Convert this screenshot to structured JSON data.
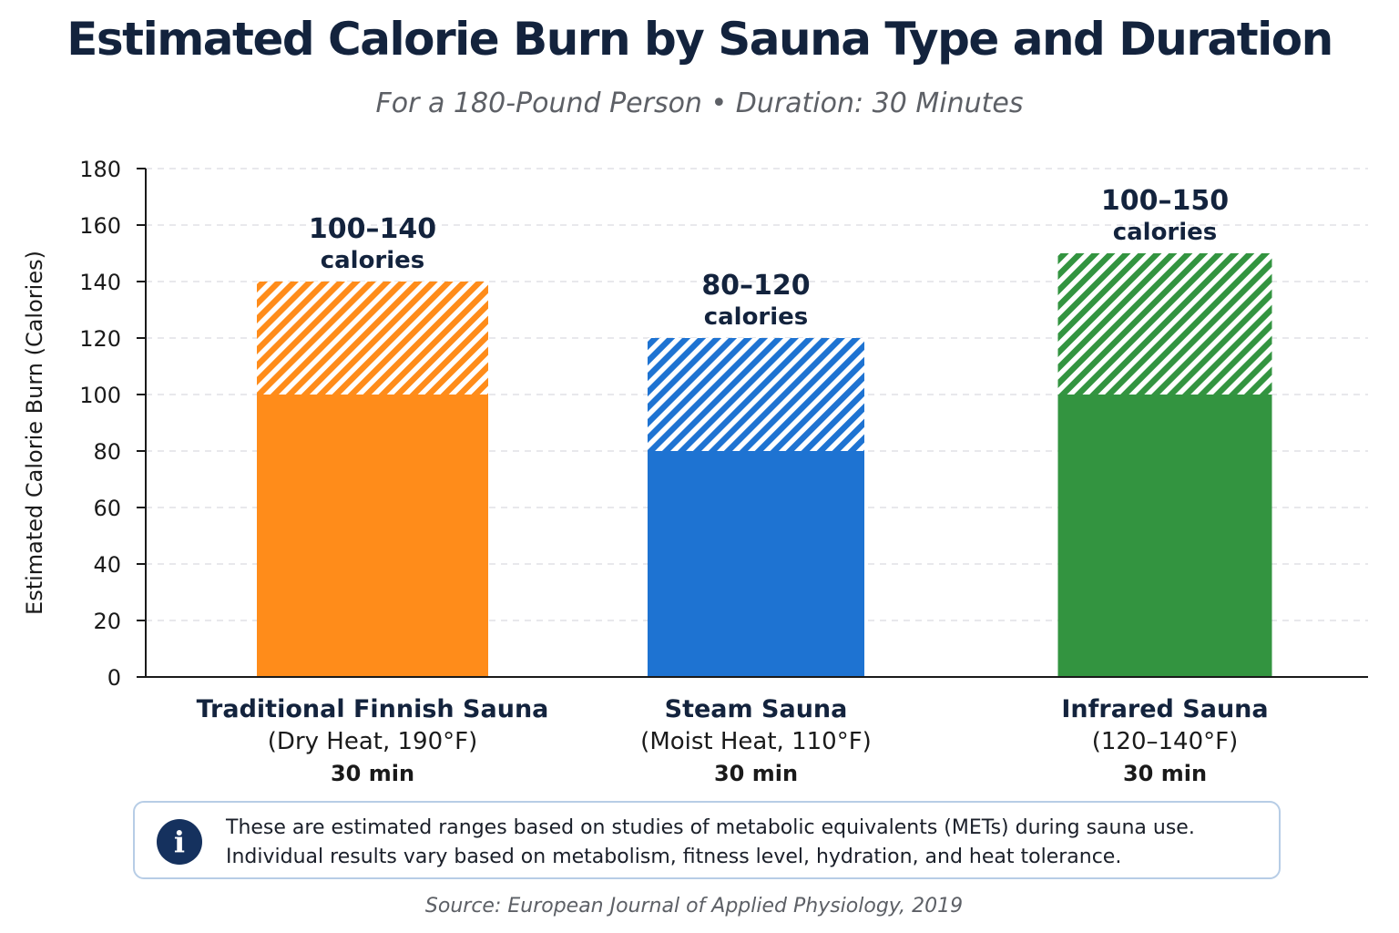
{
  "chart_data": {
    "type": "bar",
    "title": "Estimated Calorie Burn by Sauna Type and Duration",
    "subtitle": "For a 180-Pound Person • Duration: 30 Minutes",
    "ylabel": "Estimated Calorie Burn (Calories)",
    "xlabel": "",
    "ylim": [
      0,
      180
    ],
    "yticks": [
      0,
      20,
      40,
      60,
      80,
      100,
      120,
      140,
      160,
      180
    ],
    "grid": true,
    "categories": [
      {
        "name": "Traditional Finnish Sauna",
        "detail": "(Dry Heat, 190°F)",
        "duration": "30 min"
      },
      {
        "name": "Steam Sauna",
        "detail": "(Moist Heat, 110°F)",
        "duration": "30 min"
      },
      {
        "name": "Infrared Sauna",
        "detail": "(120–140°F)",
        "duration": "30 min"
      }
    ],
    "ranges": [
      {
        "low": 100,
        "high": 140,
        "label_range": "100–140",
        "label_unit": "calories",
        "color": "#FF8C1A"
      },
      {
        "low": 80,
        "high": 120,
        "label_range": "80–120",
        "label_unit": "calories",
        "color": "#1E73D2"
      },
      {
        "low": 100,
        "high": 150,
        "label_range": "100–150",
        "label_unit": "calories",
        "color": "#339440"
      }
    ]
  },
  "note": {
    "icon": "info-icon",
    "icon_glyph": "i",
    "line1": "These are estimated ranges based on studies of metabolic equivalents (METs) during sauna use.",
    "line2": "Individual results vary based on metabolism, fitness level, hydration, and heat tolerance."
  },
  "source": "Source: European Journal of Applied Physiology, 2019"
}
